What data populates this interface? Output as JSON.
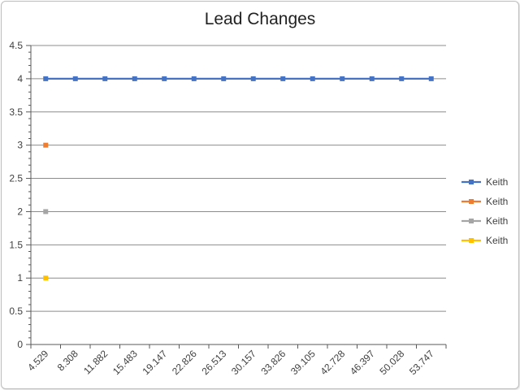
{
  "chart_data": {
    "type": "line",
    "title": "Lead Changes",
    "xlabel": "",
    "ylabel": "",
    "ylim": [
      0,
      4.5
    ],
    "ymajor_step": 0.5,
    "ytick_labels": [
      "0",
      "0.5",
      "1",
      "1.5",
      "2",
      "2.5",
      "3",
      "3.5",
      "4",
      "4.5"
    ],
    "categories": [
      "4.529",
      "8.308",
      "11.882",
      "15.483",
      "19.147",
      "22.826",
      "26.513",
      "30.157",
      "33.826",
      "39.105",
      "42.728",
      "46.397",
      "50.028",
      "53.747"
    ],
    "grid": true,
    "legend": "right",
    "series": [
      {
        "name": "Keith",
        "color": "#4472C4",
        "values": [
          4,
          4,
          4,
          4,
          4,
          4,
          4,
          4,
          4,
          4,
          4,
          4,
          4,
          4
        ]
      },
      {
        "name": "Keith",
        "color": "#ED7D31",
        "values": [
          3,
          null,
          null,
          null,
          null,
          null,
          null,
          null,
          null,
          null,
          null,
          null,
          null,
          null
        ]
      },
      {
        "name": "Keith",
        "color": "#A5A5A5",
        "values": [
          2,
          null,
          null,
          null,
          null,
          null,
          null,
          null,
          null,
          null,
          null,
          null,
          null,
          null
        ]
      },
      {
        "name": "Keith",
        "color": "#FFC000",
        "values": [
          1,
          null,
          null,
          null,
          null,
          null,
          null,
          null,
          null,
          null,
          null,
          null,
          null,
          null
        ]
      }
    ]
  }
}
